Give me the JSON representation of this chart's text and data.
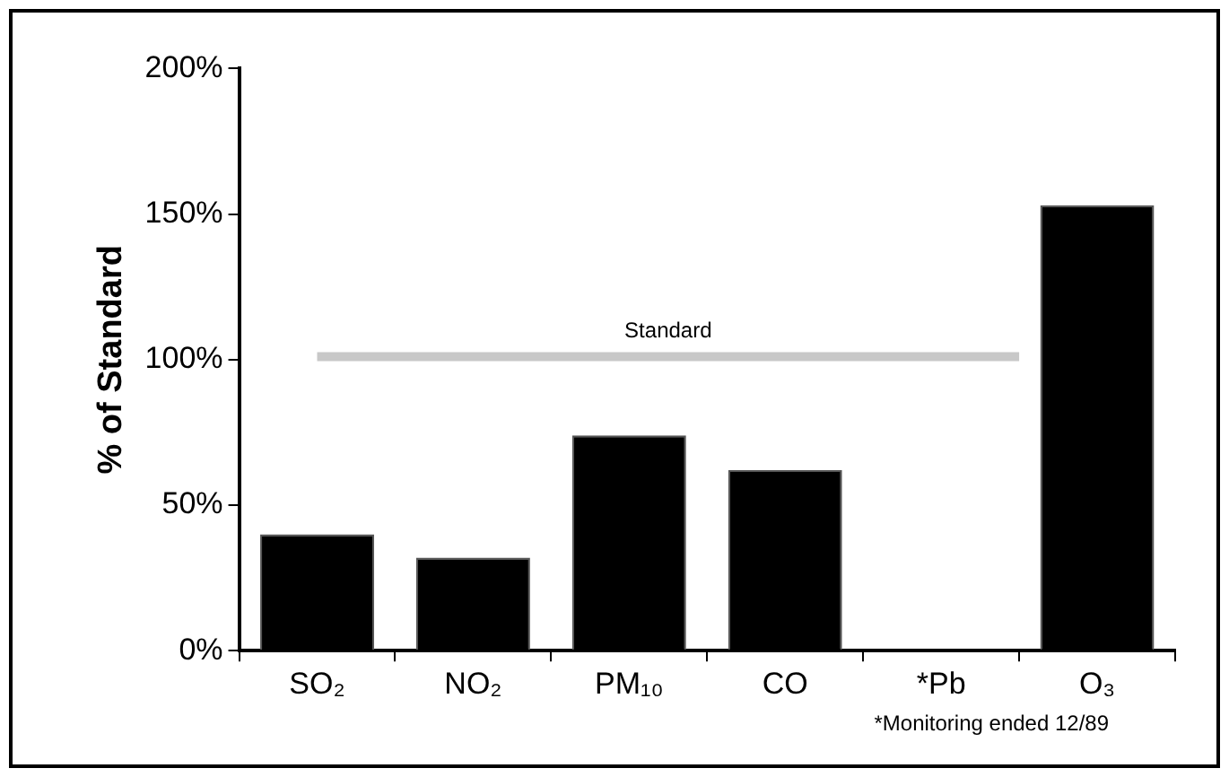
{
  "chart_data": {
    "type": "bar",
    "ylabel": "% of Standard",
    "categories": [
      "SO₂",
      "NO₂",
      "PM₁₀",
      "CO",
      "*Pb",
      "O₃"
    ],
    "values": [
      40,
      32,
      74,
      62,
      null,
      153
    ],
    "color": "#000000",
    "ylim": [
      0,
      200
    ],
    "yticks": [
      {
        "value": 0,
        "label": "0%"
      },
      {
        "value": 50,
        "label": "50%"
      },
      {
        "value": 100,
        "label": "100%"
      },
      {
        "value": 150,
        "label": "150%"
      },
      {
        "value": 200,
        "label": "200%"
      }
    ],
    "grid": false,
    "legend": false,
    "ref_lines": [
      {
        "axis": "y",
        "value": 101,
        "label": "Standard",
        "color": "#c8c8c8"
      }
    ],
    "annotations": [
      "*Monitoring ended 12/89"
    ]
  }
}
